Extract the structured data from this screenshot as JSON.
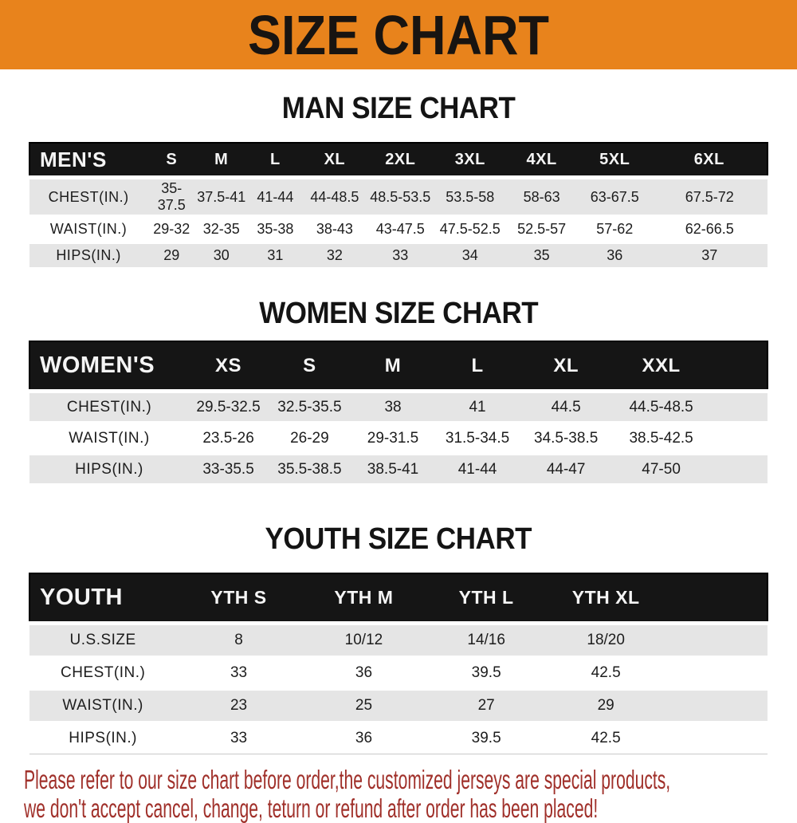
{
  "banner": {
    "title": "SIZE CHART",
    "bg_color": "#e8831c"
  },
  "sections": [
    {
      "heading": "MAN SIZE CHART"
    },
    {
      "heading": "WOMEN SIZE CHART"
    },
    {
      "heading": "YOUTH SIZE CHART"
    }
  ],
  "chart_data": [
    {
      "type": "table",
      "title": "MAN SIZE CHART",
      "corner_label": "MEN'S",
      "columns": [
        "S",
        "M",
        "L",
        "XL",
        "2XL",
        "3XL",
        "4XL",
        "5XL",
        "6XL"
      ],
      "rows": [
        {
          "label": "CHEST(IN.)",
          "values": [
            "35-37.5",
            "37.5-41",
            "41-44",
            "44-48.5",
            "48.5-53.5",
            "53.5-58",
            "58-63",
            "63-67.5",
            "67.5-72"
          ]
        },
        {
          "label": "WAIST(IN.)",
          "values": [
            "29-32",
            "32-35",
            "35-38",
            "38-43",
            "43-47.5",
            "47.5-52.5",
            "52.5-57",
            "57-62",
            "62-66.5"
          ]
        },
        {
          "label": "HIPS(IN.)",
          "values": [
            "29",
            "30",
            "31",
            "32",
            "33",
            "34",
            "35",
            "36",
            "37"
          ]
        }
      ]
    },
    {
      "type": "table",
      "title": "WOMEN SIZE CHART",
      "corner_label": "WOMEN'S",
      "columns": [
        "XS",
        "S",
        "M",
        "L",
        "XL",
        "XXL"
      ],
      "rows": [
        {
          "label": "CHEST(IN.)",
          "values": [
            "29.5-32.5",
            "32.5-35.5",
            "38",
            "41",
            "44.5",
            "44.5-48.5"
          ]
        },
        {
          "label": "WAIST(IN.)",
          "values": [
            "23.5-26",
            "26-29",
            "29-31.5",
            "31.5-34.5",
            "34.5-38.5",
            "38.5-42.5"
          ]
        },
        {
          "label": "HIPS(IN.)",
          "values": [
            "33-35.5",
            "35.5-38.5",
            "38.5-41",
            "41-44",
            "44-47",
            "47-50"
          ]
        }
      ]
    },
    {
      "type": "table",
      "title": "YOUTH SIZE CHART",
      "corner_label": "YOUTH",
      "columns": [
        "YTH S",
        "YTH M",
        "YTH L",
        "YTH XL"
      ],
      "rows": [
        {
          "label": "U.S.SIZE",
          "values": [
            "8",
            "10/12",
            "14/16",
            "18/20"
          ]
        },
        {
          "label": "CHEST(IN.)",
          "values": [
            "33",
            "36",
            "39.5",
            "42.5"
          ]
        },
        {
          "label": "WAIST(IN.)",
          "values": [
            "23",
            "25",
            "27",
            "29"
          ]
        },
        {
          "label": "HIPS(IN.)",
          "values": [
            "33",
            "36",
            "39.5",
            "42.5"
          ]
        }
      ]
    }
  ],
  "footer": {
    "lines": [
      "Please refer to our size chart before order,the customized jerseys are special products,",
      "we don't accept cancel, change, teturn or refund after order has been placed!"
    ],
    "text_color": "#a0302a"
  },
  "colors": {
    "header_bar_bg": "#151515",
    "stripe_gray": "#e5e5e5"
  }
}
